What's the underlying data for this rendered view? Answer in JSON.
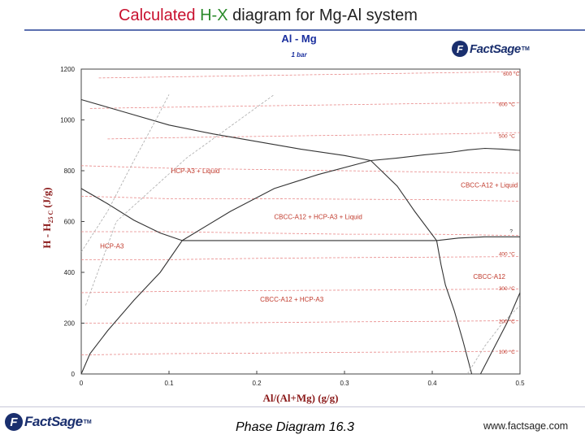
{
  "slide": {
    "title_part1": "Calculated",
    "title_part2": "H-X",
    "title_part3": "diagram for Mg-Al system",
    "footer_center": "Phase Diagram  16.3",
    "footer_right": "www.factsage.com",
    "logo_text": "FactSage",
    "logo_tm": "TM"
  },
  "colors": {
    "title_red": "#c8102e",
    "title_green": "#2a8a2a",
    "chart_title": "#1a2f9e",
    "axis_label": "#8b1a1a",
    "label_red": "#c0392b",
    "boundary": "#333333",
    "isotherm": "#e88888"
  },
  "chart_data": {
    "type": "line",
    "title": "Al - Mg",
    "subtitle": "1 bar",
    "xlabel": "Al/(Al+Mg) (g/g)",
    "ylabel_main": "H - H",
    "ylabel_sub": "25 C",
    "ylabel_unit": "(J/g)",
    "xlim": [
      0,
      0.5
    ],
    "ylim": [
      0,
      1200
    ],
    "xticks": [
      0,
      0.1,
      0.2,
      0.3,
      0.4,
      0.5
    ],
    "xtick_labels": [
      "0",
      "0.1",
      "0.2",
      "0.3",
      "0.4",
      "0.5"
    ],
    "yticks": [
      0,
      200,
      400,
      600,
      800,
      1000,
      1200
    ],
    "ytick_labels": [
      "0",
      "200",
      "400",
      "600",
      "800",
      "1000",
      "1200"
    ],
    "phase_regions": [
      {
        "label": "HCP-A3 + Liquid",
        "x": 0.13,
        "y": 790
      },
      {
        "label": "CBCC-A12 + HCP-A3 + Liquid",
        "x": 0.27,
        "y": 610
      },
      {
        "label": "CBCC-A12 + Liquid",
        "x": 0.465,
        "y": 735
      },
      {
        "label": "HCP-A3",
        "x": 0.035,
        "y": 495
      },
      {
        "label": "CBCC-A12 + HCP-A3",
        "x": 0.24,
        "y": 285
      },
      {
        "label": "CBCC-A12",
        "x": 0.465,
        "y": 375
      }
    ],
    "isotherm_labels": [
      {
        "label": "600 °C",
        "x": 0.49,
        "y": 1175
      },
      {
        "label": "600 °C",
        "x": 0.485,
        "y": 1055
      },
      {
        "label": "500 °C",
        "x": 0.485,
        "y": 930
      },
      {
        "label": "?",
        "x": 0.49,
        "y": 555
      },
      {
        "label": "400 °C",
        "x": 0.485,
        "y": 465
      },
      {
        "label": "300 °C",
        "x": 0.485,
        "y": 330
      },
      {
        "label": "200 °C",
        "x": 0.485,
        "y": 200
      },
      {
        "label": "100 °C",
        "x": 0.485,
        "y": 80
      }
    ],
    "boundaries": [
      {
        "name": "liquidus-left",
        "style": "solid",
        "points": [
          [
            0,
            1080
          ],
          [
            0.05,
            1030
          ],
          [
            0.1,
            980
          ],
          [
            0.15,
            945
          ],
          [
            0.2,
            915
          ],
          [
            0.25,
            885
          ],
          [
            0.3,
            860
          ],
          [
            0.33,
            840
          ]
        ]
      },
      {
        "name": "liquidus-right",
        "style": "solid",
        "points": [
          [
            0.33,
            840
          ],
          [
            0.36,
            850
          ],
          [
            0.39,
            862
          ],
          [
            0.42,
            872
          ],
          [
            0.44,
            882
          ],
          [
            0.46,
            888
          ],
          [
            0.48,
            885
          ],
          [
            0.5,
            880
          ]
        ]
      },
      {
        "name": "solidus-hcp",
        "style": "solid",
        "points": [
          [
            0,
            730
          ],
          [
            0.03,
            670
          ],
          [
            0.06,
            605
          ],
          [
            0.09,
            555
          ],
          [
            0.115,
            525
          ]
        ]
      },
      {
        "name": "three-phase-left",
        "style": "solid",
        "points": [
          [
            0.115,
            525
          ],
          [
            0.17,
            640
          ],
          [
            0.22,
            730
          ],
          [
            0.27,
            785
          ],
          [
            0.33,
            840
          ]
        ]
      },
      {
        "name": "three-phase-right",
        "style": "solid",
        "points": [
          [
            0.33,
            840
          ],
          [
            0.36,
            740
          ],
          [
            0.38,
            640
          ],
          [
            0.405,
            525
          ]
        ]
      },
      {
        "name": "eutectic-tie-line",
        "style": "solid",
        "points": [
          [
            0.115,
            525
          ],
          [
            0.405,
            525
          ]
        ]
      },
      {
        "name": "cbcc-upper",
        "style": "solid",
        "points": [
          [
            0.405,
            525
          ],
          [
            0.43,
            535
          ],
          [
            0.46,
            540
          ],
          [
            0.49,
            540
          ],
          [
            0.5,
            540
          ]
        ]
      },
      {
        "name": "solvus-hcp",
        "style": "solid",
        "points": [
          [
            0,
            0
          ],
          [
            0.01,
            80
          ],
          [
            0.03,
            170
          ],
          [
            0.06,
            290
          ],
          [
            0.09,
            400
          ],
          [
            0.115,
            525
          ]
        ]
      },
      {
        "name": "solvus-cbcc-left",
        "style": "solid",
        "points": [
          [
            0.405,
            525
          ],
          [
            0.41,
            430
          ],
          [
            0.415,
            350
          ],
          [
            0.425,
            250
          ],
          [
            0.435,
            130
          ],
          [
            0.445,
            0
          ]
        ]
      },
      {
        "name": "solvus-cbcc-right",
        "style": "solid",
        "points": [
          [
            0.455,
            0
          ],
          [
            0.47,
            100
          ],
          [
            0.485,
            200
          ],
          [
            0.5,
            320
          ]
        ]
      },
      {
        "name": "cbcc-lower-dash",
        "style": "dashed",
        "points": [
          [
            0.44,
            0
          ],
          [
            0.46,
            110
          ],
          [
            0.48,
            200
          ],
          [
            0.5,
            270
          ]
        ]
      },
      {
        "name": "liquidus-dashed-guide",
        "style": "dashed",
        "points": [
          [
            0,
            480
          ],
          [
            0.03,
            640
          ],
          [
            0.06,
            840
          ],
          [
            0.085,
            1000
          ],
          [
            0.1,
            1100
          ]
        ]
      },
      {
        "name": "hcp-solidus-dashed",
        "style": "dashed",
        "points": [
          [
            0.005,
            270
          ],
          [
            0.04,
            600
          ],
          [
            0.12,
            850
          ],
          [
            0.22,
            1100
          ]
        ]
      }
    ],
    "isotherms": [
      [
        [
          0.02,
          1165
        ],
        [
          0.15,
          1172
        ],
        [
          0.3,
          1180
        ],
        [
          0.4,
          1185
        ],
        [
          0.5,
          1190
        ]
      ],
      [
        [
          0.01,
          1045
        ],
        [
          0.1,
          1050
        ],
        [
          0.2,
          1055
        ],
        [
          0.3,
          1060
        ],
        [
          0.4,
          1065
        ],
        [
          0.5,
          1068
        ]
      ],
      [
        [
          0.03,
          925
        ],
        [
          0.1,
          930
        ],
        [
          0.2,
          935
        ],
        [
          0.3,
          940
        ],
        [
          0.42,
          945
        ],
        [
          0.5,
          950
        ]
      ],
      [
        [
          0.0,
          820
        ],
        [
          0.1,
          810
        ],
        [
          0.2,
          805
        ],
        [
          0.3,
          800
        ],
        [
          0.4,
          795
        ],
        [
          0.5,
          790
        ]
      ],
      [
        [
          0.0,
          700
        ],
        [
          0.1,
          690
        ],
        [
          0.2,
          690
        ],
        [
          0.3,
          688
        ],
        [
          0.4,
          686
        ],
        [
          0.5,
          680
        ]
      ],
      [
        [
          0.0,
          560
        ],
        [
          0.1,
          560
        ],
        [
          0.2,
          555
        ],
        [
          0.3,
          550
        ],
        [
          0.4,
          550
        ],
        [
          0.5,
          545
        ]
      ],
      [
        [
          0.0,
          450
        ],
        [
          0.1,
          450
        ],
        [
          0.2,
          455
        ],
        [
          0.3,
          458
        ],
        [
          0.4,
          460
        ],
        [
          0.5,
          462
        ]
      ],
      [
        [
          0.0,
          320
        ],
        [
          0.1,
          325
        ],
        [
          0.2,
          328
        ],
        [
          0.3,
          330
        ],
        [
          0.4,
          332
        ],
        [
          0.5,
          335
        ]
      ],
      [
        [
          0.0,
          200
        ],
        [
          0.1,
          200
        ],
        [
          0.2,
          202
        ],
        [
          0.3,
          205
        ],
        [
          0.4,
          207
        ],
        [
          0.5,
          210
        ]
      ],
      [
        [
          0.0,
          75
        ],
        [
          0.1,
          80
        ],
        [
          0.2,
          82
        ],
        [
          0.3,
          85
        ],
        [
          0.4,
          87
        ],
        [
          0.5,
          90
        ]
      ]
    ]
  }
}
